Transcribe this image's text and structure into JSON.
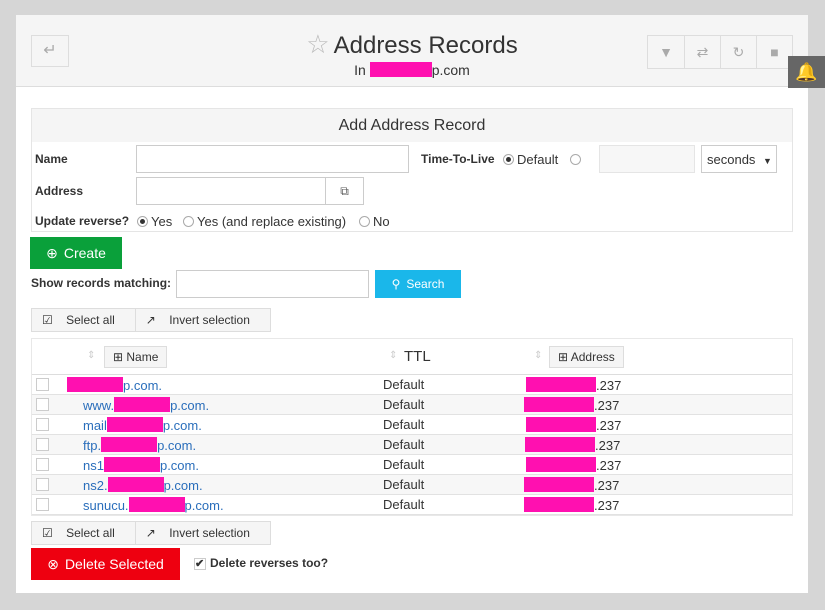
{
  "header": {
    "title": "Address Records",
    "subtitle_prefix": "In",
    "subtitle_suffix": "p.com"
  },
  "form": {
    "title": "Add Address Record",
    "name_label": "Name",
    "address_label": "Address",
    "ttl_label": "Time-To-Live",
    "ttl_default": "Default",
    "ttl_unit": "seconds",
    "update_reverse_label": "Update reverse?",
    "rev_yes": "Yes",
    "rev_yes_replace": "Yes (and replace existing)",
    "rev_no": "No",
    "create": "Create"
  },
  "search": {
    "label": "Show records matching:",
    "button": "Search"
  },
  "selection": {
    "select_all": "Select all",
    "invert": "Invert selection"
  },
  "table": {
    "columns": [
      "Name",
      "TTL",
      "Address"
    ],
    "rows": [
      {
        "name_prefix": "",
        "name_suffix": "p.com.",
        "ttl": "Default",
        "address_suffix": ".237"
      },
      {
        "name_prefix": "www.",
        "name_suffix": "p.com.",
        "ttl": "Default",
        "address_suffix": ".237"
      },
      {
        "name_prefix": "mail",
        "name_suffix": "p.com.",
        "ttl": "Default",
        "address_suffix": ".237"
      },
      {
        "name_prefix": "ftp.",
        "name_suffix": "p.com.",
        "ttl": "Default",
        "address_suffix": ".237"
      },
      {
        "name_prefix": "ns1",
        "name_suffix": "p.com.",
        "ttl": "Default",
        "address_suffix": ".237"
      },
      {
        "name_prefix": "ns2.",
        "name_suffix": "p.com.",
        "ttl": "Default",
        "address_suffix": ".237"
      },
      {
        "name_prefix": "sunucu.",
        "name_suffix": "p.com.",
        "ttl": "Default",
        "address_suffix": ".237"
      }
    ]
  },
  "footer": {
    "delete": "Delete Selected",
    "delete_reverses": "Delete reverses too?"
  },
  "colors": {
    "create": "#0aa03a",
    "search": "#1ab7ea",
    "delete": "#ee0010",
    "redaction": "#ff10b0",
    "link": "#2a6ebb"
  }
}
